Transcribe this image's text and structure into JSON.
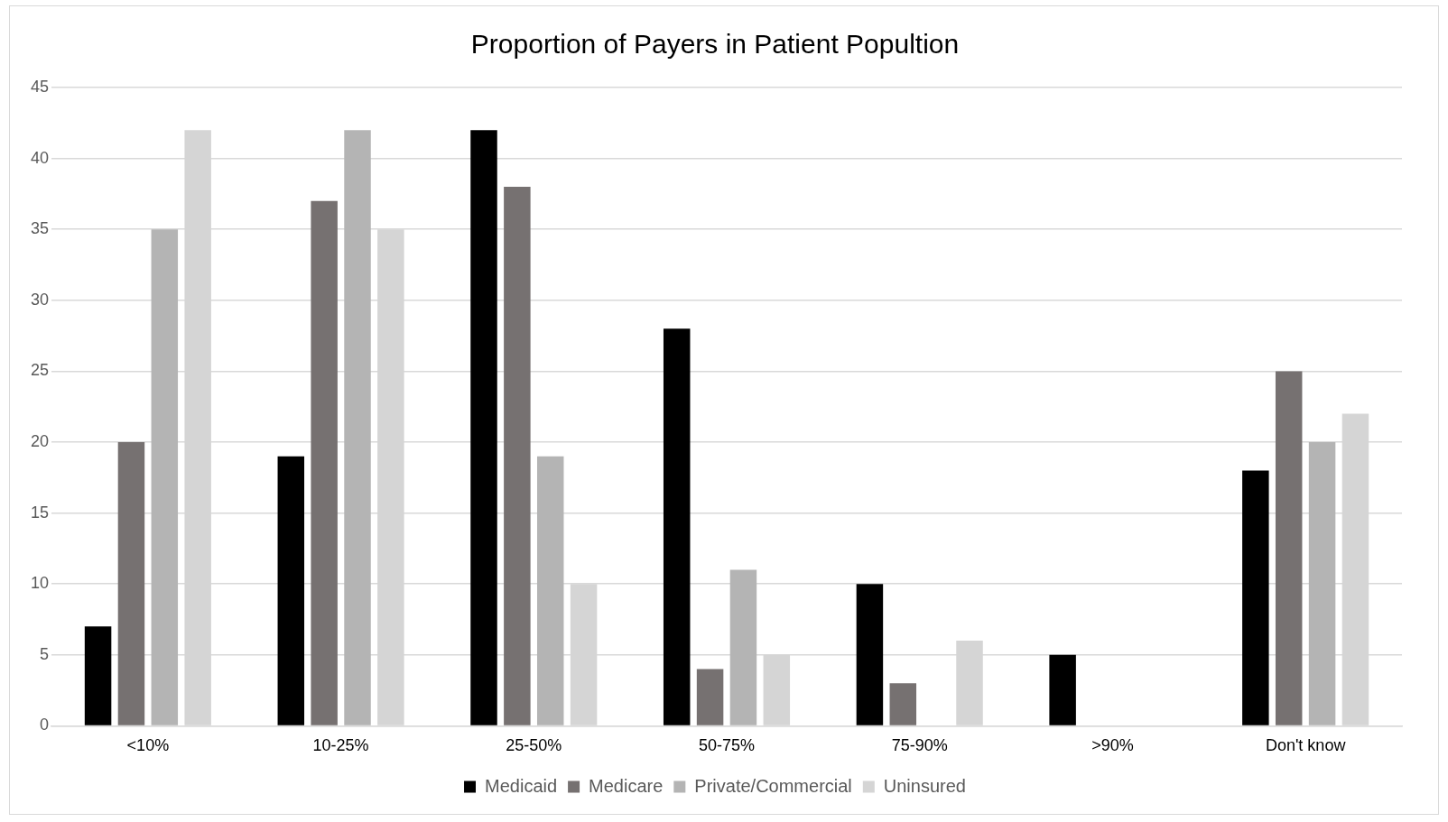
{
  "chart_data": {
    "type": "bar",
    "title": "Proportion of Payers in Patient Popultion",
    "categories": [
      "<10%",
      "10-25%",
      "25-50%",
      "50-75%",
      "75-90%",
      ">90%",
      "Don't know"
    ],
    "series": [
      {
        "name": "Medicaid",
        "color": "#000000",
        "values": [
          7,
          19,
          42,
          28,
          10,
          5,
          18
        ]
      },
      {
        "name": "Medicare",
        "color": "#767171",
        "values": [
          20,
          37,
          38,
          4,
          3,
          0,
          25
        ]
      },
      {
        "name": "Private/Commercial",
        "color": "#b4b4b4",
        "values": [
          35,
          42,
          19,
          11,
          0,
          0,
          20
        ]
      },
      {
        "name": "Uninsured",
        "color": "#d5d5d5",
        "values": [
          42,
          35,
          10,
          5,
          6,
          0,
          22
        ]
      }
    ],
    "ylim": [
      0,
      45
    ],
    "yticks": [
      0,
      5,
      10,
      15,
      20,
      25,
      30,
      35,
      40,
      45
    ],
    "grid": "y",
    "legend": "bottom"
  }
}
